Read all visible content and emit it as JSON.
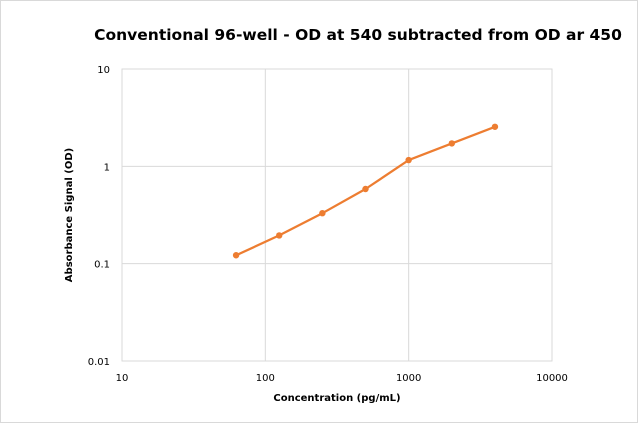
{
  "chart_data": {
    "type": "line",
    "title": "Conventional 96-well - OD at 540 subtracted from OD ar 450",
    "xlabel": "Concentration (pg/mL)",
    "ylabel": "Absorbance Signal (OD)",
    "x_scale": "log",
    "y_scale": "log",
    "xlim": [
      10,
      10000
    ],
    "ylim": [
      0.01,
      10
    ],
    "x_ticks": [
      "10",
      "100",
      "1000",
      "10000"
    ],
    "y_ticks": [
      "0.01",
      "0.1",
      "1",
      "10"
    ],
    "grid": true,
    "legend": "none",
    "series": [
      {
        "color": "#ed7d31",
        "x": [
          62.5,
          125,
          250,
          500,
          1000,
          2000,
          4000
        ],
        "y": [
          0.122,
          0.195,
          0.33,
          0.585,
          1.16,
          1.72,
          2.55
        ]
      }
    ]
  }
}
